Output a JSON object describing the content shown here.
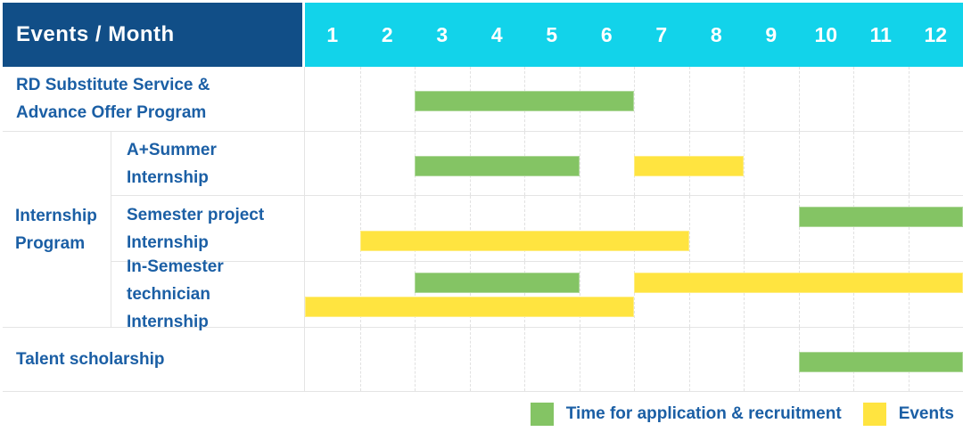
{
  "header": {
    "events_month_label": "Events / Month",
    "months": [
      "1",
      "2",
      "3",
      "4",
      "5",
      "6",
      "7",
      "8",
      "9",
      "10",
      "11",
      "12"
    ]
  },
  "colors": {
    "header_blue": "#114e87",
    "header_cyan": "#12d3ea",
    "label_text_blue": "#1b5fa5",
    "recruitment_green": "#84c464",
    "events_yellow": "#ffe440",
    "grid_gray": "#e4e4e4"
  },
  "legend": [
    {
      "key": "recruitment",
      "label": "Time for application & recruitment",
      "color": "#84c464"
    },
    {
      "key": "events",
      "label": "Events",
      "color": "#ffe440"
    }
  ],
  "chart_data": {
    "type": "bar",
    "subtype": "gantt-timeline",
    "x_categories": [
      "1",
      "2",
      "3",
      "4",
      "5",
      "6",
      "7",
      "8",
      "9",
      "10",
      "11",
      "12"
    ],
    "x_axis_label": "Month",
    "row_axis_label": "Events",
    "series_legend": [
      "Time for application & recruitment",
      "Events"
    ],
    "group_label": {
      "label": "Internship Program",
      "lines": [
        "Internship",
        "Program"
      ]
    },
    "rows": [
      {
        "group": null,
        "label": "RD Substitute Service & Advance Offer Program",
        "label_lines": [
          "RD Substitute Service &",
          "Advance Offer Program"
        ],
        "bars": [
          {
            "series": "Time for application & recruitment",
            "color_key": "recruitment",
            "start_month": 3,
            "end_month": 6,
            "lane": "single"
          }
        ]
      },
      {
        "group": "Internship Program",
        "label": "A+Summer Internship",
        "label_lines": [
          "A+Summer",
          "Internship"
        ],
        "bars": [
          {
            "series": "Time for application & recruitment",
            "color_key": "recruitment",
            "start_month": 3,
            "end_month": 5,
            "lane": "single"
          },
          {
            "series": "Events",
            "color_key": "events",
            "start_month": 7,
            "end_month": 8,
            "lane": "single"
          }
        ]
      },
      {
        "group": "Internship Program",
        "label": "Semester project Internship",
        "label_lines": [
          "Semester project",
          "Internship"
        ],
        "bars": [
          {
            "series": "Time for application & recruitment",
            "color_key": "recruitment",
            "start_month": 10,
            "end_month": 12,
            "lane": "top"
          },
          {
            "series": "Events",
            "color_key": "events",
            "start_month": 2,
            "end_month": 7,
            "lane": "bottom"
          }
        ]
      },
      {
        "group": "Internship Program",
        "label": "In-Semester technician Internship",
        "label_lines": [
          "In-Semester",
          "technician Internship"
        ],
        "bars": [
          {
            "series": "Time for application & recruitment",
            "color_key": "recruitment",
            "start_month": 3,
            "end_month": 5,
            "lane": "top"
          },
          {
            "series": "Events",
            "color_key": "events",
            "start_month": 7,
            "end_month": 12,
            "lane": "top"
          },
          {
            "series": "Events",
            "color_key": "events",
            "start_month": 1,
            "end_month": 6,
            "lane": "bottom"
          }
        ]
      },
      {
        "group": null,
        "label": "Talent scholarship",
        "label_lines": [
          "Talent scholarship"
        ],
        "bars": [
          {
            "series": "Time for application & recruitment",
            "color_key": "recruitment",
            "start_month": 10,
            "end_month": 12,
            "lane": "single"
          }
        ]
      }
    ]
  }
}
